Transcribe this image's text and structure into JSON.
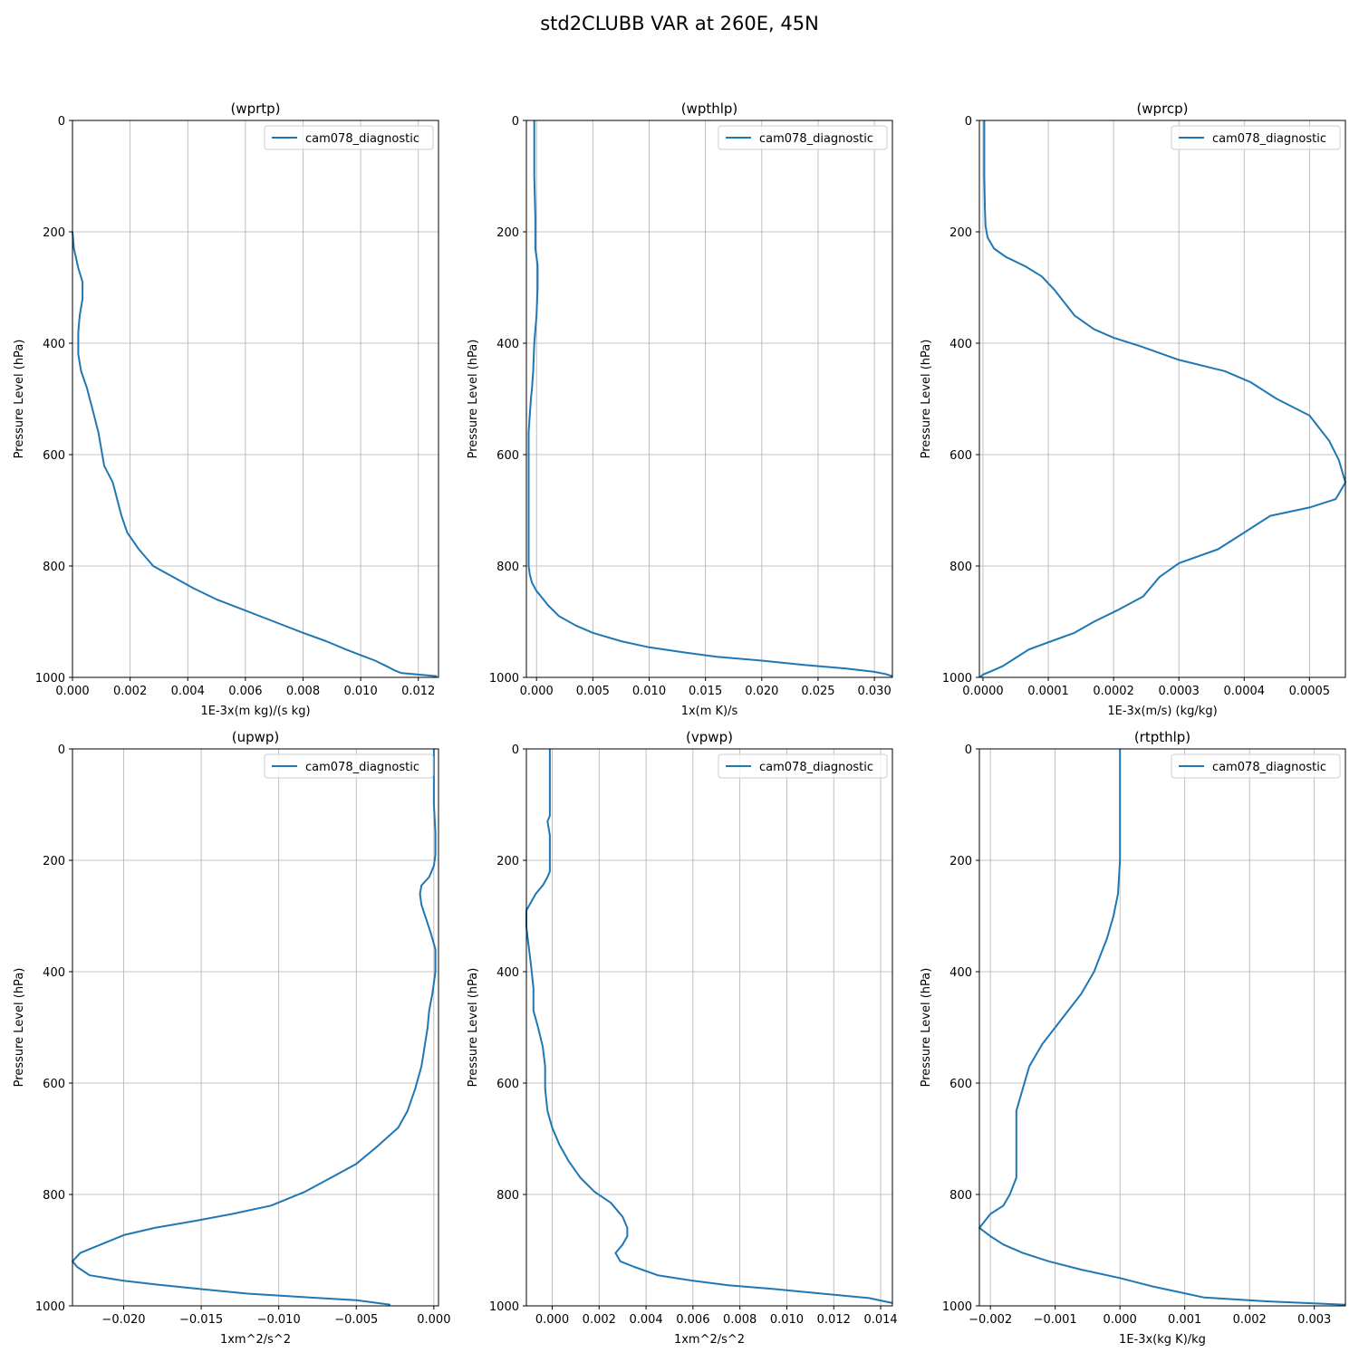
{
  "figure": {
    "title": "std2CLUBB VAR at 260E, 45N"
  },
  "chart_data": [
    {
      "type": "line",
      "title": "(wprtp)",
      "xlabel": "1E-3x(m kg)/(s kg)",
      "ylabel": "Pressure Level (hPa)",
      "xlim": [
        0,
        0.0127
      ],
      "ylim": [
        1000,
        0
      ],
      "grid": true,
      "legend": "top-right",
      "xticks": [
        0,
        0.002,
        0.004,
        0.006,
        0.008,
        0.01,
        0.012
      ],
      "xtick_labels": [
        "0.000",
        "0.002",
        "0.004",
        "0.006",
        "0.008",
        "0.010",
        "0.012"
      ],
      "yticks": [
        0,
        200,
        400,
        600,
        800,
        1000
      ],
      "ytick_labels": [
        "0",
        "200",
        "400",
        "600",
        "800",
        "1000"
      ],
      "series": [
        {
          "name": "cam078_diagnostic",
          "color": "#1f77b4",
          "x": [
            0.0,
            5e-05,
            0.0002,
            0.00035,
            0.00035,
            0.00025,
            0.0002,
            0.0002,
            0.0003,
            0.0005,
            0.0007,
            0.0009,
            0.001,
            0.0011,
            0.0014,
            0.0017,
            0.0019,
            0.0023,
            0.0028,
            0.0035,
            0.0042,
            0.005,
            0.006,
            0.007,
            0.008,
            0.0088,
            0.0095,
            0.01,
            0.0105,
            0.0109,
            0.0112,
            0.0114,
            0.012,
            0.01265
          ],
          "y": [
            200,
            230,
            265,
            290,
            320,
            350,
            380,
            420,
            450,
            480,
            520,
            560,
            590,
            620,
            650,
            710,
            740,
            770,
            800,
            820,
            840,
            860,
            880,
            900,
            920,
            935,
            950,
            960,
            970,
            980,
            988,
            992,
            995,
            998
          ]
        }
      ]
    },
    {
      "type": "line",
      "title": "(wpthlp)",
      "xlabel": "1x(m K)/s",
      "ylabel": "Pressure Level (hPa)",
      "xlim": [
        -0.0009,
        0.0316
      ],
      "ylim": [
        1000,
        0
      ],
      "grid": true,
      "legend": "top-right",
      "xticks": [
        0,
        0.005,
        0.01,
        0.015,
        0.02,
        0.025,
        0.03
      ],
      "xtick_labels": [
        "0.000",
        "0.005",
        "0.010",
        "0.015",
        "0.020",
        "0.025",
        "0.030"
      ],
      "yticks": [
        0,
        200,
        400,
        600,
        800,
        1000
      ],
      "ytick_labels": [
        "0",
        "200",
        "400",
        "600",
        "800",
        "1000"
      ],
      "series": [
        {
          "name": "cam078_diagnostic",
          "color": "#1f77b4",
          "x": [
            -0.0002,
            -0.0002,
            -0.0001,
            -0.0001,
            -0.0001,
            0.0001,
            0.0001,
            0.0,
            -0.0002,
            -0.0003,
            -0.0004,
            -0.0005,
            -0.0006,
            -0.0007,
            -0.0007,
            -0.0007,
            -0.0007,
            -0.0007,
            -0.0007,
            -0.0007,
            -0.0006,
            -0.0004,
            0.0,
            0.0005,
            0.001,
            0.002,
            0.0035,
            0.005,
            0.0075,
            0.01,
            0.013,
            0.016,
            0.02,
            0.024,
            0.0275,
            0.03,
            0.031,
            0.0316
          ],
          "y": [
            0,
            100,
            175,
            200,
            230,
            260,
            300,
            350,
            400,
            450,
            480,
            500,
            530,
            560,
            600,
            650,
            700,
            750,
            780,
            800,
            815,
            830,
            845,
            857,
            870,
            890,
            907,
            920,
            935,
            946,
            955,
            963,
            970,
            978,
            984,
            990,
            994,
            998
          ]
        }
      ]
    },
    {
      "type": "line",
      "title": "(wprcp)",
      "xlabel": "1E-3x(m/s) (kg/kg)",
      "ylabel": "Pressure Level (hPa)",
      "xlim": [
        -5.5e-06,
        0.000555
      ],
      "ylim": [
        1000,
        0
      ],
      "grid": true,
      "legend": "top-right",
      "xticks": [
        0,
        0.0001,
        0.0002,
        0.0003,
        0.0004,
        0.0005
      ],
      "xtick_labels": [
        "0.0000",
        "0.0001",
        "0.0002",
        "0.0003",
        "0.0004",
        "0.0005"
      ],
      "yticks": [
        0,
        200,
        400,
        600,
        800,
        1000
      ],
      "ytick_labels": [
        "0",
        "200",
        "400",
        "600",
        "800",
        "1000"
      ],
      "series": [
        {
          "name": "cam078_diagnostic",
          "color": "#1f77b4",
          "x": [
            2e-06,
            2e-06,
            3e-06,
            4e-06,
            7e-06,
            1.7e-05,
            3.5e-05,
            6.5e-05,
            9e-05,
            0.00011,
            0.00014,
            0.00017,
            0.0002,
            0.00024,
            0.0003,
            0.00037,
            0.00041,
            0.00045,
            0.0005,
            0.00053,
            0.000545,
            0.000555,
            0.00054,
            0.0005,
            0.00044,
            0.0004,
            0.00036,
            0.0003,
            0.00027,
            0.000245,
            0.000205,
            0.00017,
            0.00014,
            0.000105,
            7e-05,
            5e-05,
            3e-05,
            1e-05,
            0.0,
            -5e-06
          ],
          "y": [
            0,
            100,
            160,
            190,
            210,
            230,
            245,
            262,
            280,
            305,
            350,
            375,
            390,
            405,
            430,
            450,
            470,
            500,
            530,
            575,
            610,
            650,
            680,
            695,
            710,
            740,
            770,
            795,
            820,
            855,
            880,
            900,
            920,
            935,
            950,
            965,
            980,
            990,
            995,
            1000
          ]
        }
      ]
    },
    {
      "type": "line",
      "title": "(upwp)",
      "xlabel": "1xm^2/s^2",
      "ylabel": "Pressure Level (hPa)",
      "xlim": [
        -0.0233,
        0.0003
      ],
      "ylim": [
        1000,
        0
      ],
      "grid": true,
      "legend": "top-right",
      "xticks": [
        -0.02,
        -0.015,
        -0.01,
        -0.005,
        0.0
      ],
      "xtick_labels": [
        "−0.020",
        "−0.015",
        "−0.010",
        "−0.005",
        "0.000"
      ],
      "yticks": [
        0,
        200,
        400,
        600,
        800,
        1000
      ],
      "ytick_labels": [
        "0",
        "200",
        "400",
        "600",
        "800",
        "1000"
      ],
      "series": [
        {
          "name": "cam078_diagnostic",
          "color": "#1f77b4",
          "x": [
            0.0,
            0.0,
            0.0001,
            0.0001,
            0.0,
            -0.0003,
            -0.0008,
            -0.0009,
            -0.0008,
            -0.0005,
            -0.0002,
            0.0001,
            0.0001,
            -0.0001,
            -0.0003,
            -0.0004,
            -0.0006,
            -0.0008,
            -0.0012,
            -0.0017,
            -0.0023,
            -0.0037,
            -0.005,
            -0.0065,
            -0.0083,
            -0.0105,
            -0.013,
            -0.0155,
            -0.018,
            -0.02,
            -0.0213,
            -0.0228,
            -0.0233,
            -0.023,
            -0.0222,
            -0.02,
            -0.0178,
            -0.015,
            -0.012,
            -0.008,
            -0.005,
            -0.0028
          ],
          "y": [
            0,
            100,
            150,
            190,
            210,
            230,
            245,
            260,
            280,
            305,
            330,
            360,
            400,
            440,
            470,
            500,
            535,
            570,
            610,
            650,
            680,
            715,
            745,
            768,
            795,
            820,
            835,
            848,
            860,
            873,
            888,
            905,
            920,
            930,
            945,
            955,
            962,
            970,
            978,
            985,
            990,
            998
          ]
        }
      ]
    },
    {
      "type": "line",
      "title": "(vpwp)",
      "xlabel": "1xm^2/s^2",
      "ylabel": "Pressure Level (hPa)",
      "xlim": [
        -0.0011,
        0.0145
      ],
      "ylim": [
        1000,
        0
      ],
      "grid": true,
      "legend": "top-right",
      "xticks": [
        0,
        0.002,
        0.004,
        0.006,
        0.008,
        0.01,
        0.012,
        0.014
      ],
      "xtick_labels": [
        "0.000",
        "0.002",
        "0.004",
        "0.006",
        "0.008",
        "0.010",
        "0.012",
        "0.014"
      ],
      "yticks": [
        0,
        200,
        400,
        600,
        800,
        1000
      ],
      "ytick_labels": [
        "0",
        "200",
        "400",
        "600",
        "800",
        "1000"
      ],
      "series": [
        {
          "name": "cam078_diagnostic",
          "color": "#1f77b4",
          "x": [
            -0.0001,
            -0.0001,
            -0.0001,
            -0.0002,
            -0.0001,
            -0.0001,
            -0.0001,
            -0.0002,
            -0.0004,
            -0.0007,
            -0.0011,
            -0.0011,
            -0.001,
            -0.0009,
            -0.0008,
            -0.0008,
            -0.0006,
            -0.0004,
            -0.0003,
            -0.0003,
            -0.0002,
            0.0,
            0.0003,
            0.0007,
            0.0012,
            0.0018,
            0.0025,
            0.003,
            0.0032,
            0.0032,
            0.003,
            0.0027,
            0.0029,
            0.0035,
            0.0045,
            0.006,
            0.0075,
            0.0095,
            0.0115,
            0.0135,
            0.0145
          ],
          "y": [
            0,
            100,
            120,
            130,
            155,
            200,
            220,
            230,
            245,
            260,
            290,
            320,
            355,
            390,
            430,
            470,
            500,
            535,
            570,
            610,
            650,
            680,
            710,
            740,
            770,
            795,
            815,
            840,
            860,
            875,
            890,
            905,
            920,
            930,
            945,
            955,
            963,
            970,
            978,
            986,
            995
          ]
        }
      ]
    },
    {
      "type": "line",
      "title": "(rtpthlp)",
      "xlabel": "1E-3x(kg K)/kg",
      "ylabel": "Pressure Level (hPa)",
      "xlim": [
        -0.00217,
        0.00348
      ],
      "ylim": [
        1000,
        0
      ],
      "grid": true,
      "legend": "top-right",
      "xticks": [
        -0.002,
        -0.001,
        0.0,
        0.001,
        0.002,
        0.003
      ],
      "xtick_labels": [
        "−0.002",
        "−0.001",
        "0.000",
        "0.001",
        "0.002",
        "0.003"
      ],
      "yticks": [
        0,
        200,
        400,
        600,
        800,
        1000
      ],
      "ytick_labels": [
        "0",
        "200",
        "400",
        "600",
        "800",
        "1000"
      ],
      "series": [
        {
          "name": "cam078_diagnostic",
          "color": "#1f77b4",
          "x": [
            0.0,
            0.0,
            0.0,
            -3e-05,
            -0.0001,
            -0.0002,
            -0.0003,
            -0.0004,
            -0.0006,
            -0.0008,
            -0.001,
            -0.0012,
            -0.0014,
            -0.0015,
            -0.0016,
            -0.0016,
            -0.0016,
            -0.0016,
            -0.0016,
            -0.0017,
            -0.0018,
            -0.002,
            -0.00217,
            -0.002,
            -0.0018,
            -0.0015,
            -0.0011,
            -0.0006,
            0.0,
            0.0005,
            0.0009,
            0.0013,
            0.0023,
            0.00348
          ],
          "y": [
            0,
            100,
            200,
            260,
            300,
            340,
            370,
            400,
            440,
            470,
            500,
            530,
            570,
            610,
            650,
            680,
            715,
            740,
            770,
            800,
            820,
            835,
            860,
            875,
            890,
            905,
            920,
            935,
            950,
            965,
            975,
            985,
            992,
            998
          ]
        }
      ]
    }
  ]
}
